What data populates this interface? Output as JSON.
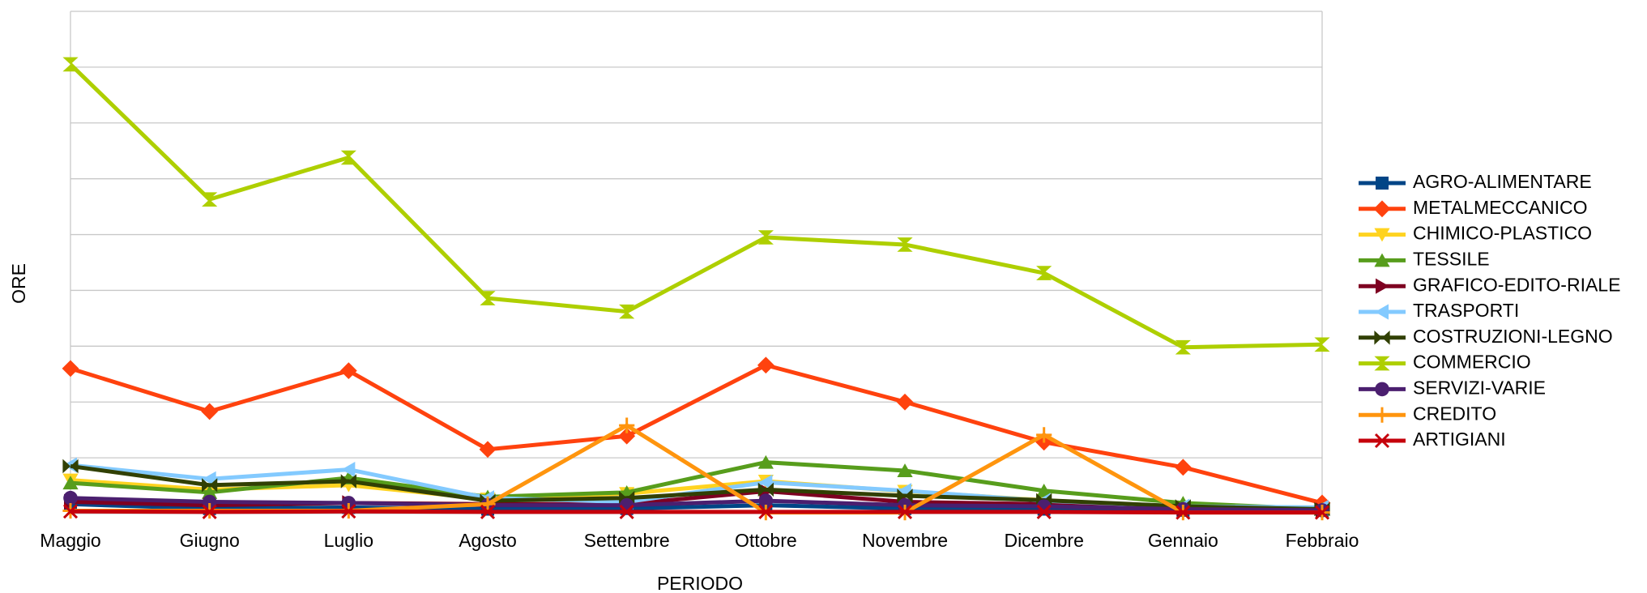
{
  "chart_data": {
    "type": "line",
    "x_label": "PERIODO",
    "y_label": "ORE",
    "categories": [
      "Maggio",
      "Giugno",
      "Luglio",
      "Agosto",
      "Settembre",
      "Ottobre",
      "Novembre",
      "Dicembre",
      "Gennaio",
      "Febbraio"
    ],
    "ylim": [
      0,
      9
    ],
    "yticks": [
      0,
      1,
      2,
      3,
      4,
      5,
      6,
      7,
      8,
      9
    ],
    "grid": true,
    "legend": "right",
    "series": [
      {
        "name": "AGRO-ALIMENTARE",
        "color": "#004586",
        "marker": "square",
        "values": [
          0.17,
          0.09,
          0.11,
          0.08,
          0.09,
          0.15,
          0.09,
          0.08,
          0.06,
          0.06
        ]
      },
      {
        "name": "METALMECCANICO",
        "color": "#ff420e",
        "marker": "diamond",
        "values": [
          2.6,
          1.83,
          2.56,
          1.15,
          1.39,
          2.66,
          2.0,
          1.28,
          0.83,
          0.19
        ]
      },
      {
        "name": "CHIMICO-PLASTICO",
        "color": "#ffd320",
        "marker": "tri-down",
        "values": [
          0.6,
          0.43,
          0.51,
          0.26,
          0.36,
          0.58,
          0.4,
          0.24,
          0.11,
          0.06
        ]
      },
      {
        "name": "TESSILE",
        "color": "#579d1c",
        "marker": "tri-up",
        "values": [
          0.55,
          0.38,
          0.64,
          0.3,
          0.38,
          0.92,
          0.77,
          0.41,
          0.19,
          0.08
        ]
      },
      {
        "name": "GRAFICO-EDITO-RIALE",
        "color": "#7e0021",
        "marker": "tri-right",
        "values": [
          0.21,
          0.15,
          0.19,
          0.17,
          0.17,
          0.4,
          0.21,
          0.17,
          0.09,
          0.06
        ]
      },
      {
        "name": "TRASPORTI",
        "color": "#83caff",
        "marker": "tri-left",
        "values": [
          0.87,
          0.62,
          0.79,
          0.28,
          0.21,
          0.56,
          0.41,
          0.23,
          0.13,
          0.11
        ]
      },
      {
        "name": "COSTRUZIONI-LEGNO",
        "color": "#314004",
        "marker": "bowtie",
        "values": [
          0.85,
          0.51,
          0.58,
          0.23,
          0.28,
          0.43,
          0.32,
          0.24,
          0.13,
          0.08
        ]
      },
      {
        "name": "COMMERCIO",
        "color": "#aecf00",
        "marker": "hourglass",
        "values": [
          8.05,
          5.63,
          6.38,
          3.86,
          3.62,
          4.95,
          4.82,
          4.31,
          2.98,
          3.03
        ]
      },
      {
        "name": "SERVIZI-VARIE",
        "color": "#4b1f6f",
        "marker": "circle",
        "values": [
          0.28,
          0.21,
          0.19,
          0.15,
          0.15,
          0.23,
          0.15,
          0.13,
          0.08,
          0.06
        ]
      },
      {
        "name": "CREDITO",
        "color": "#ff950e",
        "marker": "plus",
        "values": [
          0.05,
          0.05,
          0.05,
          0.17,
          1.58,
          0.02,
          0.02,
          1.41,
          0.02,
          0.02
        ]
      },
      {
        "name": "ARTIGIANI",
        "color": "#c5000b",
        "marker": "cross",
        "values": [
          0.04,
          0.03,
          0.04,
          0.03,
          0.03,
          0.03,
          0.03,
          0.03,
          0.02,
          0.02
        ]
      }
    ]
  }
}
